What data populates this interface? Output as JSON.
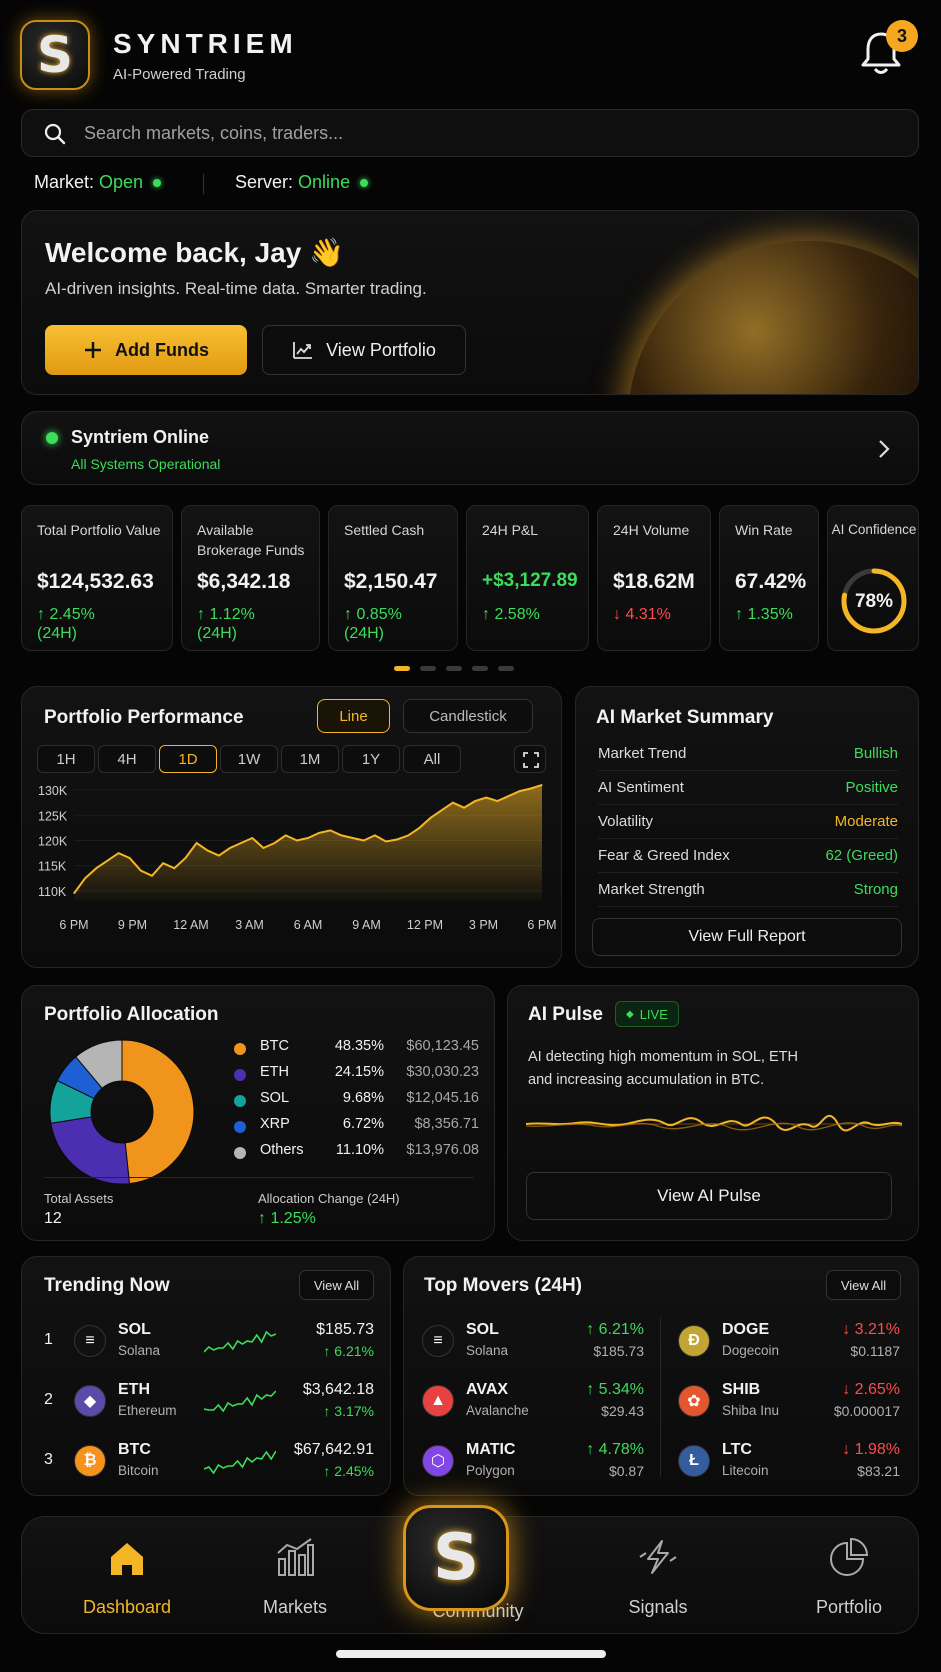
{
  "app": {
    "name": "SYNTRIEM",
    "tagline": "AI-Powered Trading",
    "logo_letter": "S",
    "notification_count": "3"
  },
  "search": {
    "placeholder": "Search markets, coins, traders..."
  },
  "status": {
    "market_label": "Market:",
    "market_value": "Open",
    "server_label": "Server:",
    "server_value": "Online"
  },
  "welcome": {
    "title": "Welcome back, Jay 👋",
    "subtitle": "AI-driven insights. Real-time data. Smarter trading.",
    "add_funds": "Add Funds",
    "view_portfolio": "View Portfolio"
  },
  "system": {
    "title": "Syntriem Online",
    "subtitle": "All Systems Operational"
  },
  "stats": [
    {
      "label": "Total Portfolio Value",
      "value": "$124,532.63",
      "change": "↑ 2.45%",
      "period": "(24H)"
    },
    {
      "label": "Available Brokerage Funds",
      "value": "$6,342.18",
      "change": "↑ 1.12%",
      "period": "(24H)"
    },
    {
      "label": "Settled Cash",
      "value": "$2,150.47",
      "change": "↑ 0.85%",
      "period": "(24H)"
    },
    {
      "label": "24H P&L",
      "value": "+$3,127.89",
      "change": "↑ 2.58%",
      "period": ""
    },
    {
      "label": "24H Volume",
      "value": "$18.62M",
      "change": "↓ 4.31%",
      "period": ""
    },
    {
      "label": "Win Rate",
      "value": "67.42%",
      "change": "↑ 1.35%",
      "period": ""
    },
    {
      "label": "AI Confidence",
      "value": "78%",
      "fraction": 0.78
    }
  ],
  "performance": {
    "title": "Portfolio Performance",
    "toggle_line": "Line",
    "toggle_candle": "Candlestick",
    "timeframes": [
      "1H",
      "4H",
      "1D",
      "1W",
      "1M",
      "1Y",
      "All"
    ],
    "active_timeframe": "1D"
  },
  "chart_data": {
    "type": "area",
    "title": "",
    "xlabel": "",
    "ylabel": "",
    "x_ticks": [
      "6 PM",
      "9 PM",
      "12 AM",
      "3 AM",
      "6 AM",
      "9 AM",
      "12 PM",
      "3 PM",
      "6 PM"
    ],
    "y_ticks": [
      "110K",
      "115K",
      "120K",
      "125K",
      "130K"
    ],
    "ylim": [
      108000,
      131000
    ],
    "values": [
      109500,
      112500,
      114500,
      116000,
      117500,
      116500,
      114000,
      113000,
      115500,
      114500,
      116500,
      119500,
      118000,
      117000,
      118500,
      119500,
      120500,
      118500,
      119500,
      121000,
      120000,
      120500,
      121500,
      122000,
      121000,
      120500,
      120000,
      121000,
      119800,
      120200,
      121000,
      122500,
      124500,
      126000,
      127500,
      126500,
      127800,
      128500,
      127800,
      128800,
      129800,
      130300,
      131000
    ],
    "color": "#f5b626"
  },
  "ai_summary": {
    "title": "AI Market Summary",
    "rows": [
      {
        "label": "Market Trend",
        "value": "Bullish",
        "color": "#3ddc5a"
      },
      {
        "label": "AI Sentiment",
        "value": "Positive",
        "color": "#3ddc5a"
      },
      {
        "label": "Volatility",
        "value": "Moderate",
        "color": "#f5b626"
      },
      {
        "label": "Fear & Greed Index",
        "value": "62 (Greed)",
        "color": "#3ddc5a"
      },
      {
        "label": "Market Strength",
        "value": "Strong",
        "color": "#3ddc5a"
      }
    ],
    "button": "View Full Report"
  },
  "allocation": {
    "title": "Portfolio Allocation",
    "items": [
      {
        "name": "BTC",
        "percent": "48.35%",
        "amount": "$60,123.45",
        "share": 48.35,
        "color": "#f0941b"
      },
      {
        "name": "ETH",
        "percent": "24.15%",
        "amount": "$30,030.23",
        "share": 24.15,
        "color": "#4b2fb0"
      },
      {
        "name": "SOL",
        "percent": "9.68%",
        "amount": "$12,045.16",
        "share": 9.68,
        "color": "#14a39a"
      },
      {
        "name": "XRP",
        "percent": "6.72%",
        "amount": "$8,356.71",
        "share": 6.72,
        "color": "#1f5fd6"
      },
      {
        "name": "Others",
        "percent": "11.10%",
        "amount": "$13,976.08",
        "share": 11.1,
        "color": "#b5b5b5"
      }
    ],
    "total_label": "Total Assets",
    "total_value": "12",
    "change_label": "Allocation Change (24H)",
    "change_value": "↑ 1.25%"
  },
  "pulse": {
    "title": "AI Pulse",
    "live": "LIVE",
    "text_line1": "AI detecting high momentum in SOL, ETH",
    "text_line2": "and increasing accumulation in BTC.",
    "button": "View AI Pulse"
  },
  "trending": {
    "title": "Trending Now",
    "view_all": "View All",
    "items": [
      {
        "rank": "1",
        "symbol": "SOL",
        "name": "Solana",
        "price": "$185.73",
        "change": "↑ 6.21%",
        "icon_color": "#111111",
        "glyph": "≡"
      },
      {
        "rank": "2",
        "symbol": "ETH",
        "name": "Ethereum",
        "price": "$3,642.18",
        "change": "↑ 3.17%",
        "icon_color": "#5b4aa8",
        "glyph": "◆"
      },
      {
        "rank": "3",
        "symbol": "BTC",
        "name": "Bitcoin",
        "price": "$67,642.91",
        "change": "↑ 2.45%",
        "icon_color": "#f7931a",
        "glyph": "₿"
      }
    ]
  },
  "movers": {
    "title": "Top Movers (24H)",
    "view_all": "View All",
    "gainers": [
      {
        "symbol": "SOL",
        "name": "Solana",
        "change": "↑ 6.21%",
        "price": "$185.73",
        "icon_color": "#111111",
        "glyph": "≡"
      },
      {
        "symbol": "AVAX",
        "name": "Avalanche",
        "change": "↑ 5.34%",
        "price": "$29.43",
        "icon_color": "#e84142",
        "glyph": "▲"
      },
      {
        "symbol": "MATIC",
        "name": "Polygon",
        "change": "↑ 4.78%",
        "price": "$0.87",
        "icon_color": "#8247e5",
        "glyph": "⬡"
      }
    ],
    "losers": [
      {
        "symbol": "DOGE",
        "name": "Dogecoin",
        "change": "↓ 3.21%",
        "price": "$0.1187",
        "icon_color": "#c2a633",
        "glyph": "Ð"
      },
      {
        "symbol": "SHIB",
        "name": "Shiba Inu",
        "change": "↓ 2.65%",
        "price": "$0.000017",
        "icon_color": "#e4572e",
        "glyph": "✿"
      },
      {
        "symbol": "LTC",
        "name": "Litecoin",
        "change": "↓ 1.98%",
        "price": "$83.21",
        "icon_color": "#345d9d",
        "glyph": "Ł"
      }
    ]
  },
  "nav": {
    "dashboard": "Dashboard",
    "markets": "Markets",
    "community": "Community",
    "signals": "Signals",
    "portfolio": "Portfolio"
  }
}
